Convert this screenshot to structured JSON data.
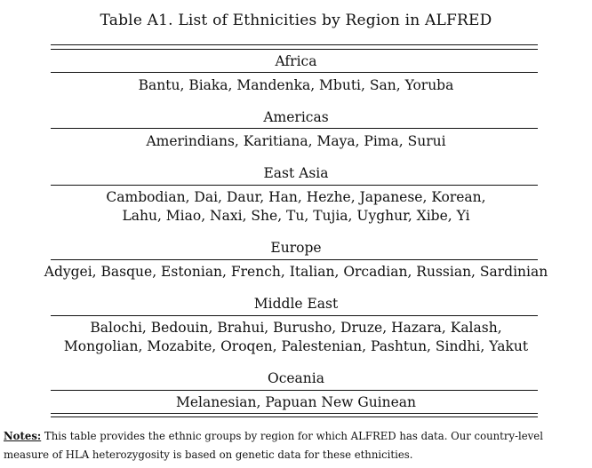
{
  "table": {
    "title": "Table A1. List of Ethnicities by Region in ALFRED",
    "regions": [
      {
        "name": "Africa",
        "lines": [
          "Bantu, Biaka, Mandenka, Mbuti, San, Yoruba"
        ]
      },
      {
        "name": "Americas",
        "lines": [
          "Amerindians, Karitiana, Maya, Pima, Surui"
        ]
      },
      {
        "name": "East Asia",
        "lines": [
          "Cambodian, Dai, Daur, Han, Hezhe, Japanese, Korean,",
          "Lahu, Miao, Naxi, She, Tu, Tujia, Uyghur, Xibe, Yi"
        ]
      },
      {
        "name": "Europe",
        "lines": [
          "Adygei, Basque, Estonian, French, Italian, Orcadian, Russian, Sardinian"
        ]
      },
      {
        "name": "Middle East",
        "lines": [
          "Balochi, Bedouin, Brahui, Burusho, Druze, Hazara, Kalash,",
          "Mongolian, Mozabite, Oroqen, Palestenian, Pashtun, Sindhi, Yakut"
        ]
      },
      {
        "name": "Oceania",
        "lines": [
          "Melanesian, Papuan New Guinean"
        ]
      }
    ]
  },
  "notes": {
    "label": "Notes:",
    "text": " This table provides the ethnic groups by region for which ALFRED has data. Our country-level measure of HLA heterozygosity is based on genetic data for these ethnicities."
  }
}
